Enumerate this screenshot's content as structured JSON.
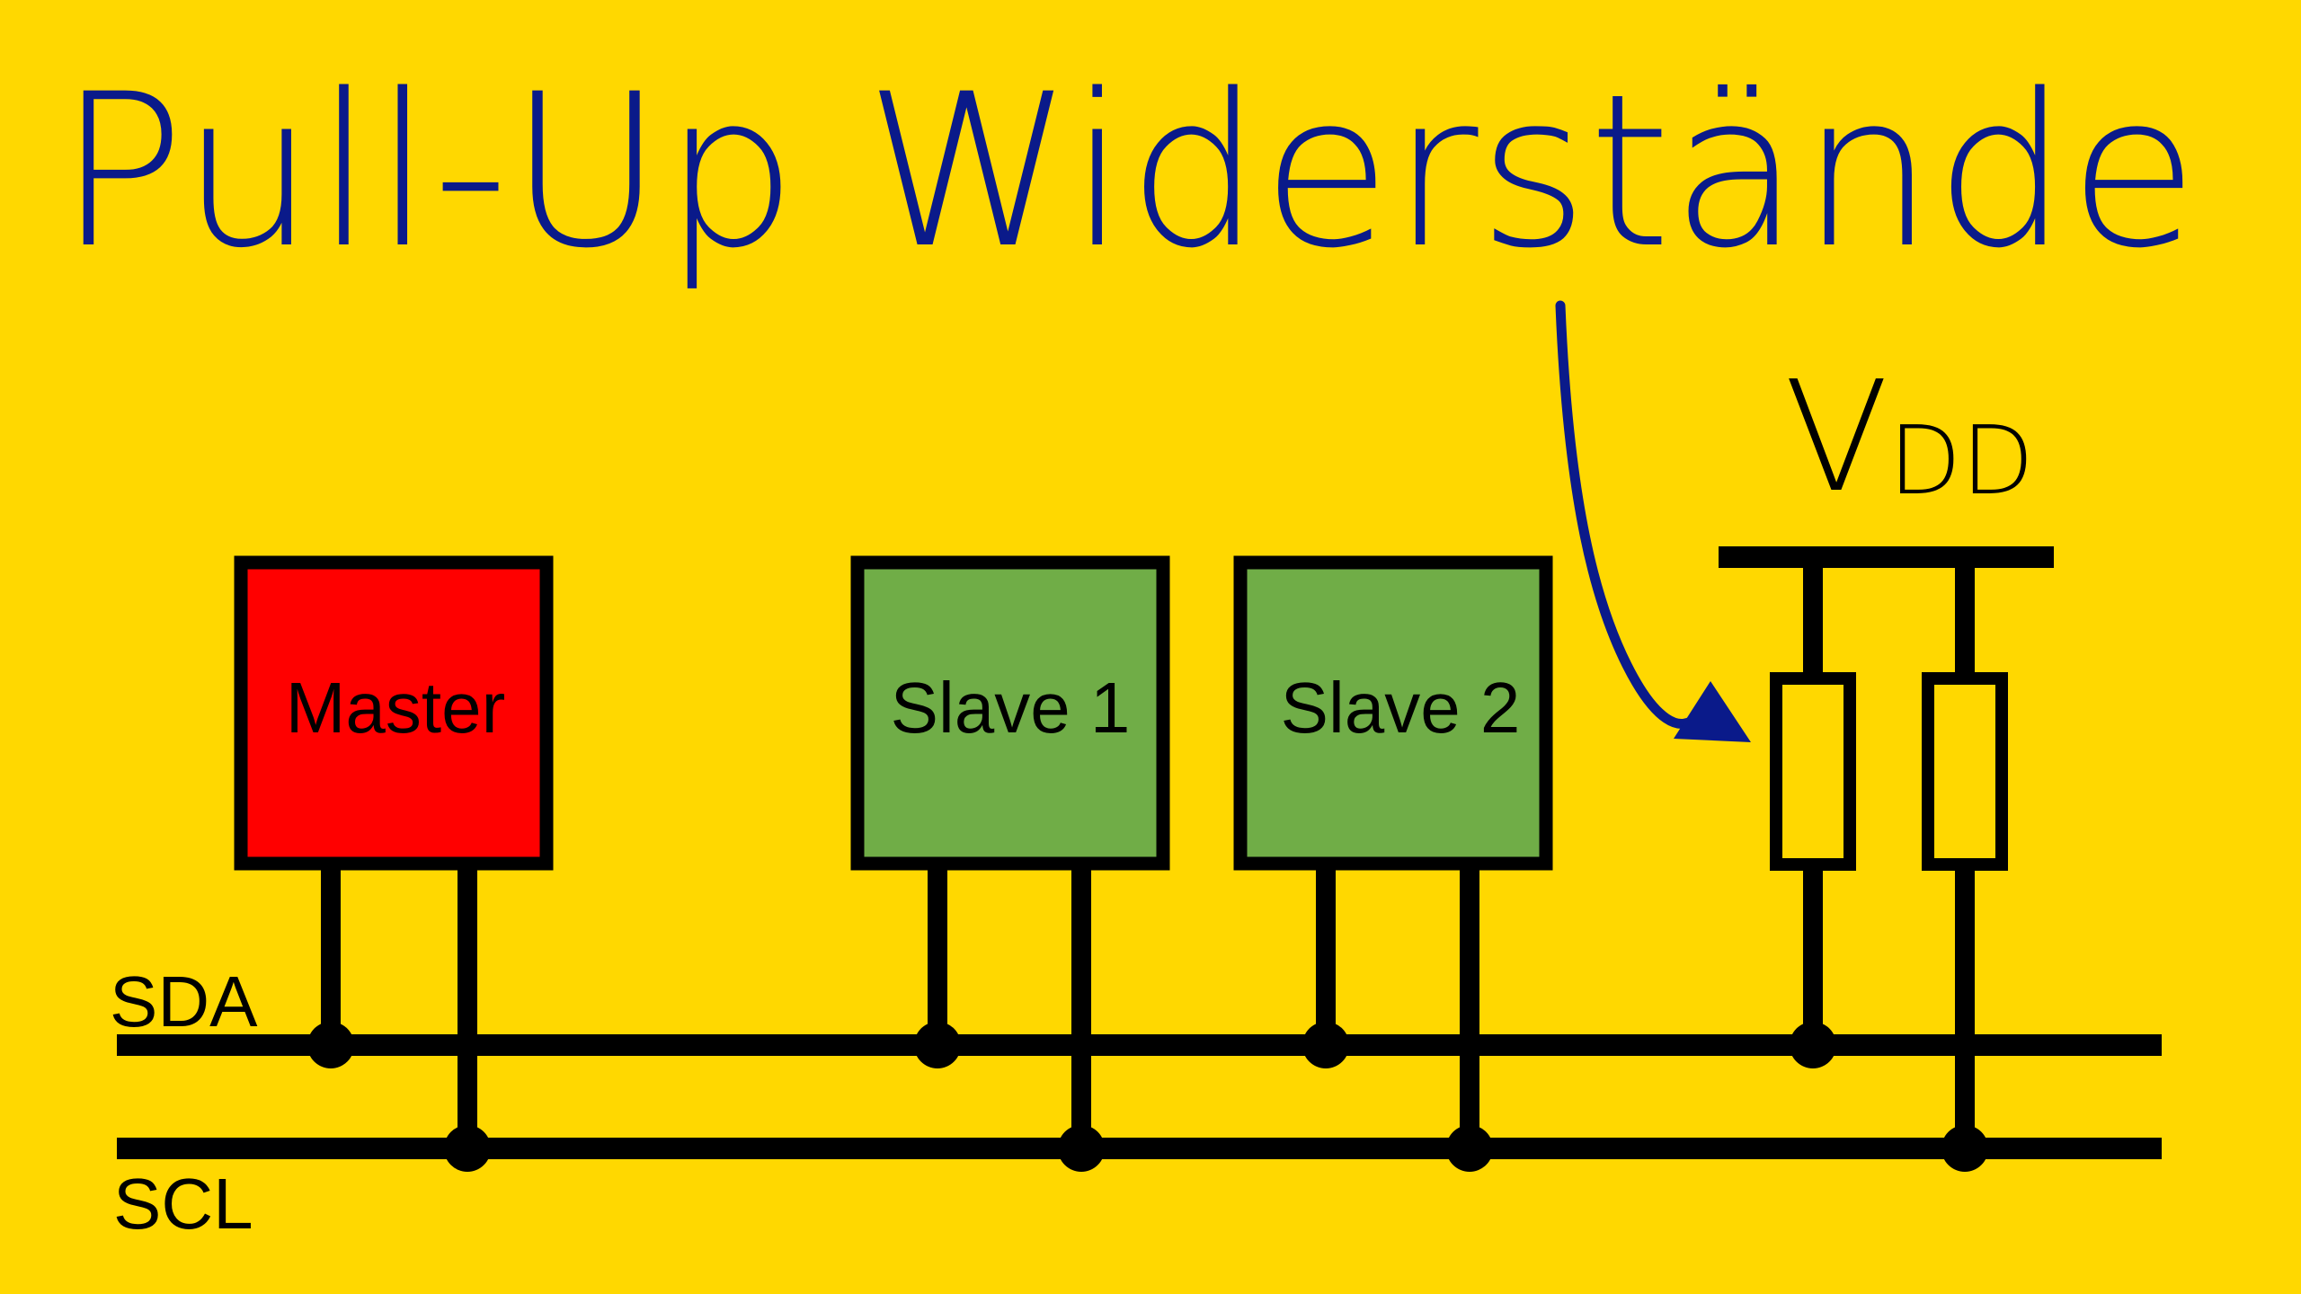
{
  "colors": {
    "background": "#FFD800",
    "title": "#0A1A8A",
    "wire": "#000000",
    "master_fill": "#FF0000",
    "slave_fill": "#70AD47",
    "resistor_fill": "#FFD800",
    "arrow": "#0A1A8A"
  },
  "title": "Pull-Up Widerstände",
  "supply": {
    "symbol": "V",
    "subscript": "DD"
  },
  "buses": {
    "sda": "SDA",
    "scl": "SCL"
  },
  "devices": [
    {
      "id": "master",
      "label": "Master",
      "role": "master"
    },
    {
      "id": "slave1",
      "label": "Slave 1",
      "role": "slave"
    },
    {
      "id": "slave2",
      "label": "Slave 2",
      "role": "slave"
    }
  ],
  "resistors": [
    {
      "id": "r-sda",
      "connects_to": "SDA"
    },
    {
      "id": "r-scl",
      "connects_to": "SCL"
    }
  ]
}
